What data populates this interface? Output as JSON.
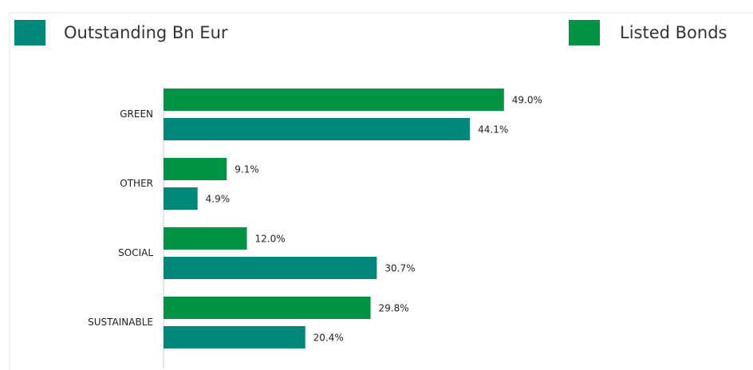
{
  "chart_data": {
    "type": "bar",
    "orientation": "horizontal",
    "categories": [
      "GREEN",
      "OTHER",
      "SOCIAL",
      "SUSTAINABLE"
    ],
    "series": [
      {
        "name": "Outstanding Bn Eur",
        "color": "#00897b",
        "values": [
          44.1,
          4.9,
          30.7,
          20.4
        ],
        "value_labels": [
          "44.1%",
          "4.9%",
          "30.7%",
          "20.4%"
        ]
      },
      {
        "name": "Listed Bonds",
        "color": "#009444",
        "values": [
          49.0,
          9.1,
          12.0,
          29.8
        ],
        "value_labels": [
          "49.0%",
          "9.1%",
          "12.0%",
          "29.8%"
        ]
      }
    ]
  }
}
